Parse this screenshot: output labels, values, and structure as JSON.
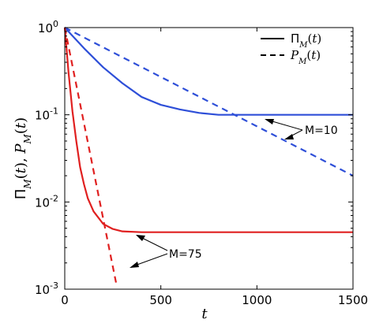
{
  "chart_data": {
    "type": "line",
    "xlabel": "t",
    "ylabel": "Π_M(t), P_M(t)",
    "xlim": [
      0,
      1500
    ],
    "ylim": [
      0.001,
      1
    ],
    "yscale": "log",
    "grid": false,
    "legend_position": "top-right",
    "x_ticks": [
      "0",
      "500",
      "1000",
      "1500"
    ],
    "y_ticks": [
      {
        "base": "10",
        "exp": "-3",
        "value": 0.001
      },
      {
        "base": "10",
        "exp": "-2",
        "value": 0.01
      },
      {
        "base": "10",
        "exp": "-1",
        "value": 0.1
      },
      {
        "base": "10",
        "exp": "0",
        "value": 1
      }
    ],
    "legend": [
      {
        "label": "Π_M(t)",
        "style": "solid"
      },
      {
        "label": "P_M(t)",
        "style": "dashed"
      }
    ],
    "series": [
      {
        "name": "Π_M(t)",
        "M": "M=10",
        "style": "solid",
        "color": "#2e4fd8",
        "x": [
          0,
          100,
          200,
          300,
          400,
          500,
          600,
          700,
          800,
          1000,
          1200,
          1500
        ],
        "y": [
          1.0,
          0.58,
          0.35,
          0.23,
          0.16,
          0.13,
          0.115,
          0.105,
          0.1,
          0.1,
          0.1,
          0.1
        ]
      },
      {
        "name": "P_M(t)",
        "M": "M=10",
        "style": "dashed",
        "color": "#2e4fd8",
        "x": [
          0,
          1500
        ],
        "y": [
          1.0,
          0.02
        ]
      },
      {
        "name": "Π_M(t)",
        "M": "M=75",
        "style": "solid",
        "color": "#e02020",
        "x": [
          0,
          20,
          40,
          60,
          80,
          100,
          120,
          150,
          200,
          250,
          300,
          400,
          600,
          800,
          1000,
          1500
        ],
        "y": [
          1.0,
          0.3,
          0.11,
          0.05,
          0.025,
          0.016,
          0.011,
          0.0078,
          0.0056,
          0.0049,
          0.0046,
          0.0045,
          0.0045,
          0.0045,
          0.0045,
          0.0045
        ]
      },
      {
        "name": "P_M(t)",
        "M": "M=75",
        "style": "dashed",
        "color": "#e02020",
        "x": [
          0,
          270
        ],
        "y": [
          1.0,
          0.0011
        ]
      }
    ],
    "annotations": [
      {
        "text": "M=10"
      },
      {
        "text": "M=75"
      }
    ]
  }
}
